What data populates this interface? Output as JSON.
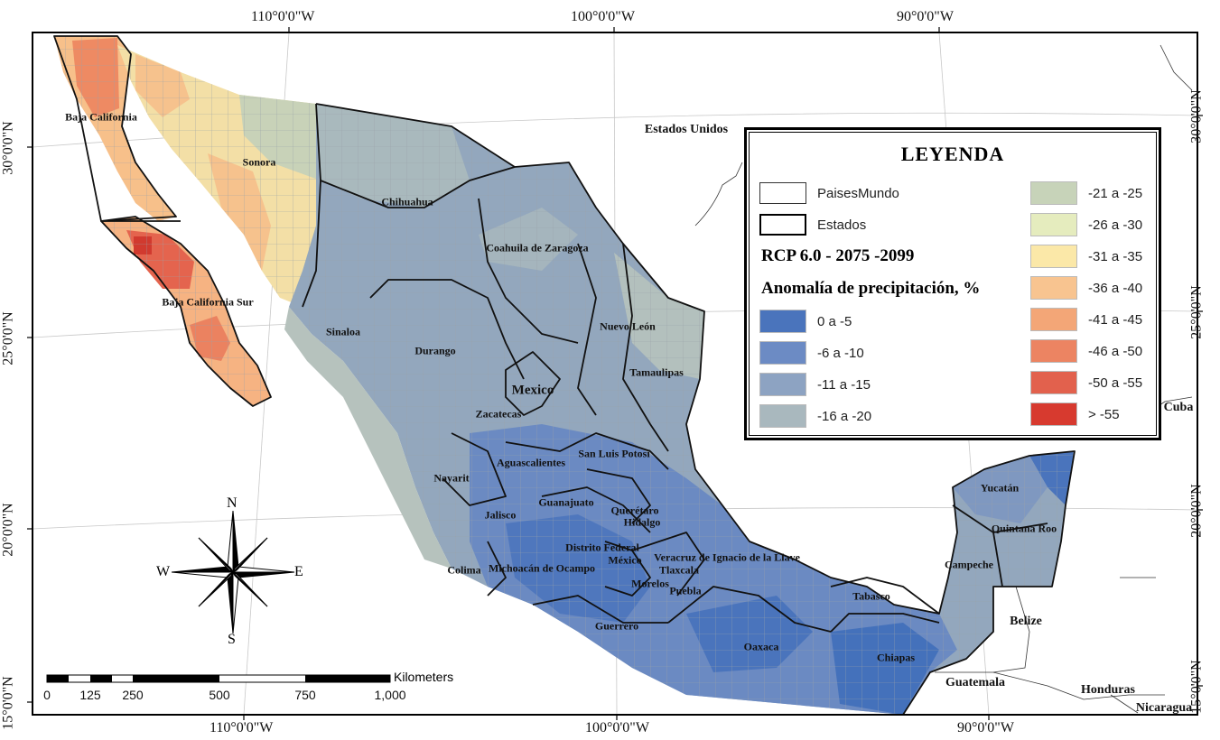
{
  "coordinates": {
    "top": [
      "110°0'0\"W",
      "100°0'0\"W",
      "90°0'0\"W"
    ],
    "bottom": [
      "110°0'0\"W",
      "100°0'0\"W",
      "90°0'0\"W"
    ],
    "left": [
      "30°0'0\"N",
      "25°0'0\"N",
      "20°0'0\"N",
      "15°0'0\"N"
    ],
    "right": [
      "30°0'0\"N",
      "25°0'0\"N",
      "20°0'0\"N",
      "15°0'0\"N"
    ]
  },
  "countries": {
    "usa": "Estados Unidos",
    "mexico": "Mexico",
    "cuba": "Cuba",
    "belize": "Belize",
    "guatemala": "Guatemala",
    "honduras": "Honduras",
    "nicaragua": "Nicaragua"
  },
  "states": [
    {
      "key": "baja_california",
      "label": "Baja California"
    },
    {
      "key": "sonora",
      "label": "Sonora"
    },
    {
      "key": "chihuahua",
      "label": "Chihuahua"
    },
    {
      "key": "coahuila",
      "label": "Coahuila de Zaragoza"
    },
    {
      "key": "baja_california_sur",
      "label": "Baja California Sur"
    },
    {
      "key": "nuevo_leon",
      "label": "Nuevo León"
    },
    {
      "key": "sinaloa",
      "label": "Sinaloa"
    },
    {
      "key": "durango",
      "label": "Durango"
    },
    {
      "key": "tamaulipas",
      "label": "Tamaulipas"
    },
    {
      "key": "zacatecas",
      "label": "Zacatecas"
    },
    {
      "key": "san_luis_potosi",
      "label": "San Luis Potosí"
    },
    {
      "key": "aguascalientes",
      "label": "Aguascalientes"
    },
    {
      "key": "nayarit",
      "label": "Nayarit"
    },
    {
      "key": "guanajuato",
      "label": "Guanajuato"
    },
    {
      "key": "queretaro",
      "label": "Querétaro"
    },
    {
      "key": "jalisco",
      "label": "Jalisco"
    },
    {
      "key": "hidalgo",
      "label": "Hidalgo"
    },
    {
      "key": "distrito_federal",
      "label": "Distrito Federal"
    },
    {
      "key": "mexico_state",
      "label": "México"
    },
    {
      "key": "veracruz",
      "label": "Veracruz de Ignacio de la Llave"
    },
    {
      "key": "tlaxcala",
      "label": "Tlaxcala"
    },
    {
      "key": "michoacan",
      "label": "Michoacán de Ocampo"
    },
    {
      "key": "colima",
      "label": "Colima"
    },
    {
      "key": "morelos",
      "label": "Morelos"
    },
    {
      "key": "puebla",
      "label": "Puebla"
    },
    {
      "key": "guerrero",
      "label": "Guerrero"
    },
    {
      "key": "oaxaca",
      "label": "Oaxaca"
    },
    {
      "key": "yucatan",
      "label": "Yucatán"
    },
    {
      "key": "quintana_roo",
      "label": "Quintana Roo"
    },
    {
      "key": "campeche",
      "label": "Campeche"
    },
    {
      "key": "tabasco",
      "label": "Tabasco"
    },
    {
      "key": "chiapas",
      "label": "Chiapas"
    }
  ],
  "legend": {
    "title": "LEYENDA",
    "outline_items": [
      {
        "label": "PaisesMundo",
        "style": "thin"
      },
      {
        "label": "Estados",
        "style": "thick"
      }
    ],
    "scenario": "RCP 6.0 - 2075 -2099",
    "variable": "Anomalía de precipitación, %",
    "classes": [
      {
        "label": "0 a -5",
        "color": "#4a74bc"
      },
      {
        "label": "-6 a -10",
        "color": "#6c8bc4"
      },
      {
        "label": "-11 a -15",
        "color": "#8da3c2"
      },
      {
        "label": "-16 a -20",
        "color": "#a9b8be"
      },
      {
        "label": "-21 a -25",
        "color": "#c7d3b9"
      },
      {
        "label": "-26 a -30",
        "color": "#e5ecbe"
      },
      {
        "label": "-31 a -35",
        "color": "#fbe8a8"
      },
      {
        "label": "-36 a -40",
        "color": "#f8c490"
      },
      {
        "label": "-41 a -45",
        "color": "#f3a677"
      },
      {
        "label": "-46 a -50",
        "color": "#ec8462"
      },
      {
        "label": "-50 a -55",
        "color": "#e2614d"
      },
      {
        "label": "> -55",
        "color": "#d73a2f"
      }
    ]
  },
  "compass": {
    "n": "N",
    "s": "S",
    "e": "E",
    "w": "W"
  },
  "scale": {
    "unit": "Kilometers",
    "ticks": [
      "0",
      "125",
      "250",
      "500",
      "750",
      "1,000"
    ]
  }
}
